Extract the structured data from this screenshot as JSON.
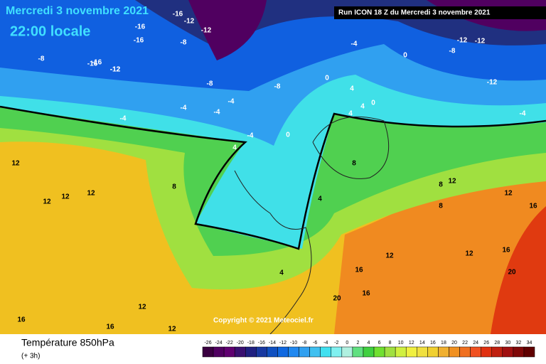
{
  "header": {
    "date": "Mercredi 3 novembre 2021",
    "time": "22:00 locale",
    "run": "Run ICON 18 Z du Mercredi 3 novembre 2021"
  },
  "copyright": "Copyright © 2021 Meteociel.fr",
  "footer": {
    "title": "Température 850hPa",
    "lead": "(+ 3h)"
  },
  "colorbar": {
    "labels": [
      -26,
      -24,
      -22,
      -20,
      -18,
      -16,
      -14,
      -12,
      -10,
      -8,
      -6,
      -4,
      -2,
      0,
      2,
      4,
      6,
      8,
      10,
      12,
      14,
      16,
      18,
      20,
      22,
      24,
      26,
      28,
      30,
      32,
      34
    ],
    "colors": [
      "#3a0040",
      "#500060",
      "#600070",
      "#3a1070",
      "#202080",
      "#1838a0",
      "#1050c0",
      "#1068e0",
      "#2088f0",
      "#30a0f0",
      "#40c0f0",
      "#40e0f0",
      "#80f0f0",
      "#b0f0e0",
      "#60e080",
      "#40d040",
      "#70e030",
      "#a0e040",
      "#d0f040",
      "#f0f040",
      "#f0e040",
      "#f0d030",
      "#f0b030",
      "#f09020",
      "#f07020",
      "#f05020",
      "#e03010",
      "#c02010",
      "#a01010",
      "#800808",
      "#600000"
    ]
  },
  "map_labels": [
    "-16",
    "-12",
    "-16",
    "-16",
    "-12",
    "-16",
    "-12",
    "-8",
    "-8",
    "-16",
    "-12",
    "-8",
    "-4",
    "-8",
    "-4",
    "-4",
    "-4",
    "0",
    "0",
    "0",
    "4",
    "4",
    "4",
    "0",
    "-4",
    "-8",
    "-12",
    "-12",
    "-12",
    "-4",
    "-4",
    "8",
    "8",
    "12",
    "12",
    "12",
    "12",
    "8",
    "4",
    "4",
    "8",
    "12",
    "12",
    "16",
    "12",
    "16",
    "20",
    "16",
    "20",
    "16",
    "16",
    "12",
    "12",
    "16",
    "12",
    "4"
  ]
}
